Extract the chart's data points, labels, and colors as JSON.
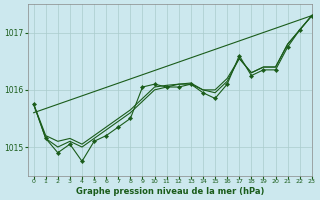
{
  "title": "Graphe pression niveau de la mer (hPa)",
  "background_color": "#cce8ee",
  "grid_color": "#aacccc",
  "line_color": "#1a5c1a",
  "marker_color": "#1a5c1a",
  "xlim": [
    -0.5,
    23
  ],
  "ylim": [
    1014.5,
    1017.5
  ],
  "yticks": [
    1015,
    1016,
    1017
  ],
  "xticks": [
    0,
    1,
    2,
    3,
    4,
    5,
    6,
    7,
    8,
    9,
    10,
    11,
    12,
    13,
    14,
    15,
    16,
    17,
    18,
    19,
    20,
    21,
    22,
    23
  ],
  "trend_x": [
    0,
    23
  ],
  "trend_y": [
    1015.6,
    1017.3
  ],
  "wiggly_y": [
    1015.75,
    1015.15,
    1014.9,
    1015.05,
    1014.75,
    1015.1,
    1015.2,
    1015.35,
    1015.5,
    1016.05,
    1016.1,
    1016.05,
    1016.05,
    1016.1,
    1015.95,
    1015.85,
    1016.1,
    1016.6,
    1016.25,
    1016.35,
    1016.35,
    1016.75,
    1017.05,
    1017.3
  ],
  "line2_y": [
    1015.75,
    1015.15,
    1015.0,
    1015.1,
    1015.0,
    1015.15,
    1015.3,
    1015.45,
    1015.6,
    1015.8,
    1016.0,
    1016.05,
    1016.1,
    1016.1,
    1016.0,
    1015.95,
    1016.15,
    1016.55,
    1016.3,
    1016.4,
    1016.4,
    1016.8,
    1017.05,
    1017.3
  ],
  "line3_y": [
    1015.75,
    1015.2,
    1015.1,
    1015.15,
    1015.05,
    1015.2,
    1015.35,
    1015.5,
    1015.65,
    1015.85,
    1016.05,
    1016.08,
    1016.1,
    1016.12,
    1016.0,
    1016.0,
    1016.2,
    1016.55,
    1016.3,
    1016.4,
    1016.4,
    1016.8,
    1017.05,
    1017.3
  ]
}
